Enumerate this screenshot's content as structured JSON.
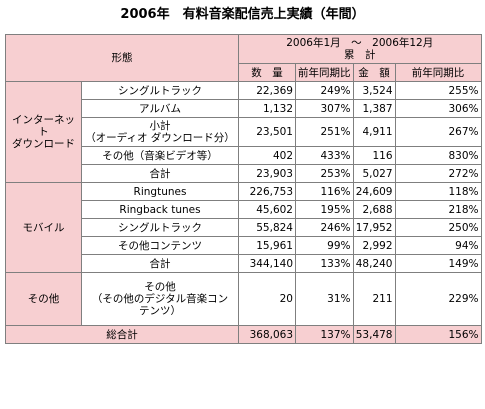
{
  "title": "2006年　有料音楽配信売上実績（年間）",
  "header": {
    "type_col": "形態",
    "period": "2006年1月　～　2006年12月",
    "cumulative": "累　計",
    "qty": "数　量",
    "qty_yoy": "前年同期比",
    "amount": "金　額",
    "amount_yoy": "前年同期比"
  },
  "sections": [
    {
      "name_lines": [
        "インターネット",
        "ダウンロード"
      ],
      "rows": [
        {
          "label": "シングルトラック",
          "qty": "22,369",
          "qty_yoy": "249%",
          "amount": "3,524",
          "amount_yoy": "255%"
        },
        {
          "label": "アルバム",
          "qty": "1,132",
          "qty_yoy": "307%",
          "amount": "1,387",
          "amount_yoy": "306%"
        },
        {
          "label_lines": [
            "小計",
            "（オーディオ ダウンロード分）"
          ],
          "qty": "23,501",
          "qty_yoy": "251%",
          "amount": "4,911",
          "amount_yoy": "267%"
        },
        {
          "label": "その他（音楽ビデオ等）",
          "qty": "402",
          "qty_yoy": "433%",
          "amount": "116",
          "amount_yoy": "830%"
        },
        {
          "label": "合計",
          "qty": "23,903",
          "qty_yoy": "253%",
          "amount": "5,027",
          "amount_yoy": "272%"
        }
      ]
    },
    {
      "name_lines": [
        "モバイル"
      ],
      "rows": [
        {
          "label": "Ringtunes",
          "qty": "226,753",
          "qty_yoy": "116%",
          "amount": "24,609",
          "amount_yoy": "118%"
        },
        {
          "label": "Ringback tunes",
          "qty": "45,602",
          "qty_yoy": "195%",
          "amount": "2,688",
          "amount_yoy": "218%"
        },
        {
          "label": "シングルトラック",
          "qty": "55,824",
          "qty_yoy": "246%",
          "amount": "17,952",
          "amount_yoy": "250%"
        },
        {
          "label": "その他コンテンツ",
          "qty": "15,961",
          "qty_yoy": "99%",
          "amount": "2,992",
          "amount_yoy": "94%"
        },
        {
          "label": "合計",
          "qty": "344,140",
          "qty_yoy": "133%",
          "amount": "48,240",
          "amount_yoy": "149%"
        }
      ]
    },
    {
      "name_lines": [
        "その他"
      ],
      "rows": [
        {
          "label_lines": [
            "その他",
            "（その他のデジタル音楽コン",
            "テンツ）"
          ],
          "qty": "20",
          "qty_yoy": "31%",
          "amount": "211",
          "amount_yoy": "229%"
        }
      ]
    }
  ],
  "grand_total": {
    "label": "総合計",
    "qty": "368,063",
    "qty_yoy": "137%",
    "amount": "53,478",
    "amount_yoy": "156%"
  }
}
